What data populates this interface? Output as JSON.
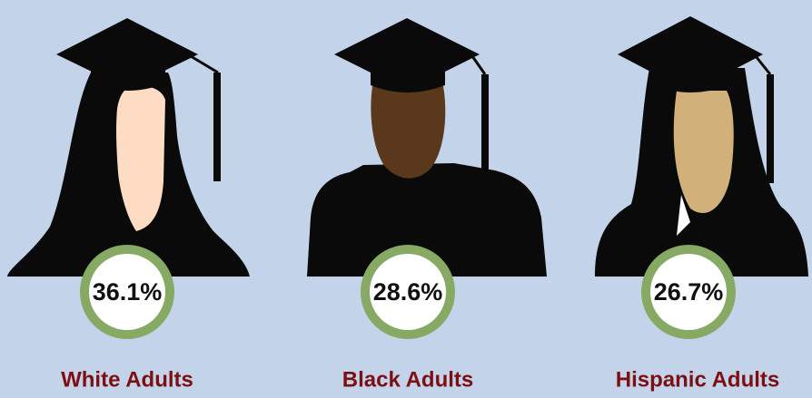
{
  "items": [
    {
      "value": "36.1%",
      "label": "White Adults"
    },
    {
      "value": "28.6%",
      "label": "Black Adults"
    },
    {
      "value": "26.7%",
      "label": "Hispanic Adults"
    }
  ]
}
